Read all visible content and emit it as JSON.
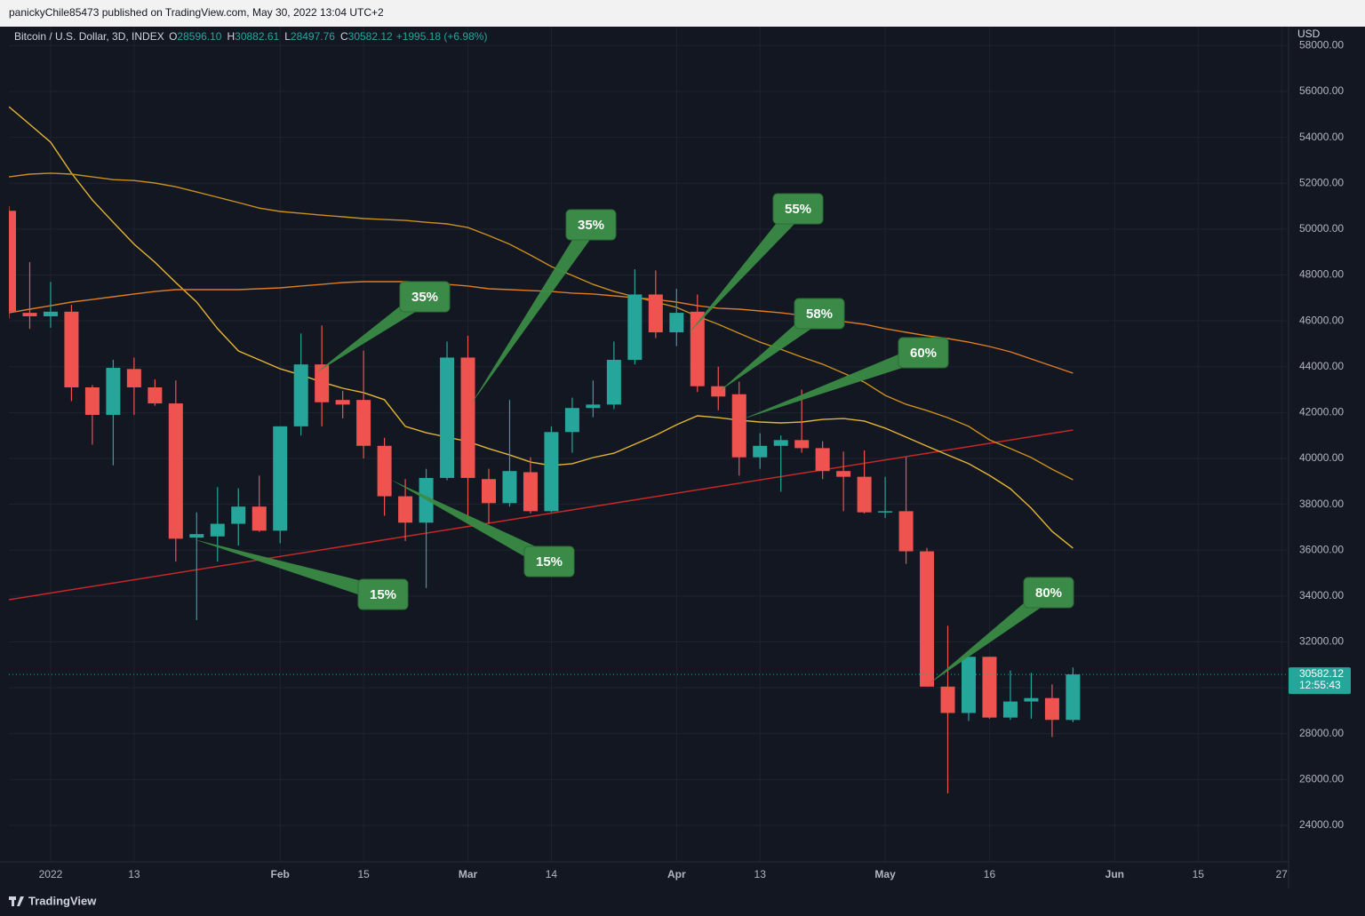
{
  "header": {
    "published": "panickyChile85473 published on TradingView.com, May 30, 2022 13:04 UTC+2",
    "symbol": "Bitcoin / U.S. Dollar, 3D, INDEX",
    "ohlc": [
      {
        "key": "O",
        "value": "28596.10"
      },
      {
        "key": "H",
        "value": "30882.61"
      },
      {
        "key": "L",
        "value": "28497.76"
      },
      {
        "key": "C",
        "value": "30582.12"
      }
    ],
    "change": "+1995.18 (+6.98%)"
  },
  "footer": "TradingView",
  "chart_data": {
    "type": "candlestick",
    "currency": "USD",
    "grid": true,
    "up_color": "#26a69a",
    "down_color": "#ef5350",
    "x": [
      "2021-12-26",
      "2021-12-29",
      "2022-01-01",
      "2022-01-04",
      "2022-01-07",
      "2022-01-10",
      "2022-01-13",
      "2022-01-16",
      "2022-01-19",
      "2022-01-22",
      "2022-01-25",
      "2022-01-28",
      "2022-01-31",
      "2022-02-03",
      "2022-02-06",
      "2022-02-09",
      "2022-02-12",
      "2022-02-15",
      "2022-02-18",
      "2022-02-21",
      "2022-02-24",
      "2022-02-27",
      "2022-03-02",
      "2022-03-05",
      "2022-03-08",
      "2022-03-11",
      "2022-03-14",
      "2022-03-17",
      "2022-03-20",
      "2022-03-23",
      "2022-03-26",
      "2022-03-29",
      "2022-04-01",
      "2022-04-04",
      "2022-04-07",
      "2022-04-10",
      "2022-04-13",
      "2022-04-16",
      "2022-04-19",
      "2022-04-22",
      "2022-04-25",
      "2022-04-28",
      "2022-05-01",
      "2022-05-04",
      "2022-05-07",
      "2022-05-10",
      "2022-05-13",
      "2022-05-16",
      "2022-05-19",
      "2022-05-22",
      "2022-05-25",
      "2022-05-28"
    ],
    "open": [
      50800,
      46350,
      46200,
      46400,
      43100,
      41900,
      43900,
      43100,
      42400,
      36550,
      36600,
      37150,
      37900,
      36850,
      41400,
      44100,
      42550,
      42550,
      40550,
      38350,
      37200,
      39150,
      44400,
      39100,
      38050,
      39400,
      37700,
      41150,
      42200,
      42350,
      44300,
      47150,
      45500,
      46400,
      43150,
      42800,
      40050,
      40550,
      40800,
      40450,
      39450,
      39200,
      37650,
      37700,
      35950,
      30050,
      28900,
      31350,
      28700,
      29400,
      29550,
      28596.1
    ],
    "high": [
      51000,
      48560,
      47700,
      46700,
      43200,
      44300,
      44400,
      43450,
      43400,
      37650,
      38750,
      38700,
      39250,
      41400,
      45450,
      45800,
      42950,
      44700,
      40900,
      39100,
      39550,
      45100,
      45350,
      39550,
      42550,
      40050,
      41400,
      42650,
      43400,
      45100,
      48250,
      48200,
      47400,
      47150,
      44000,
      43350,
      41100,
      41000,
      43000,
      40750,
      40300,
      40350,
      39200,
      40050,
      36100,
      32700,
      31350,
      31350,
      30750,
      30650,
      30150,
      30882.61
    ],
    "low": [
      46100,
      45650,
      45700,
      42500,
      40600,
      39700,
      41900,
      42300,
      35500,
      32950,
      35500,
      36200,
      36800,
      36300,
      41000,
      41400,
      41750,
      40000,
      37500,
      36400,
      34350,
      39050,
      37150,
      37150,
      37900,
      37600,
      37650,
      40250,
      41800,
      42150,
      44100,
      45250,
      44900,
      42900,
      42100,
      39250,
      39550,
      38550,
      40250,
      39100,
      37700,
      37600,
      37400,
      35400,
      30050,
      25400,
      28550,
      28650,
      28600,
      28650,
      27850,
      28497.76
    ],
    "close": [
      46400,
      46200,
      46400,
      43100,
      41900,
      43950,
      43100,
      42400,
      36500,
      36700,
      37150,
      37900,
      36850,
      41400,
      44100,
      42450,
      42350,
      40550,
      38350,
      37200,
      39150,
      44400,
      39150,
      38050,
      39450,
      37700,
      41150,
      42200,
      42350,
      44300,
      47150,
      45500,
      46350,
      43150,
      42700,
      40050,
      40550,
      40800,
      40450,
      39450,
      39200,
      37650,
      37700,
      35950,
      30050,
      28900,
      31350,
      28700,
      29400,
      29550,
      28600,
      30582.12
    ],
    "series": [
      {
        "color": "#e3b534",
        "values": [
          55340,
          54570,
          53790,
          52440,
          51270,
          50300,
          49340,
          48560,
          47670,
          46820,
          45660,
          44690,
          44300,
          43910,
          43640,
          43330,
          43060,
          42870,
          42560,
          41400,
          41120,
          40930,
          40740,
          40430,
          40150,
          39840,
          39690,
          39770,
          40040,
          40230,
          40620,
          41010,
          41470,
          41860,
          41780,
          41670,
          41590,
          41550,
          41590,
          41700,
          41740,
          41630,
          41320,
          40930,
          40540,
          40150,
          39770,
          39260,
          38680,
          37830,
          36820,
          36090
        ]
      },
      {
        "color": "#c98f1e",
        "values": [
          52280,
          52400,
          52440,
          52400,
          52280,
          52160,
          52120,
          52010,
          51850,
          51620,
          51390,
          51160,
          50920,
          50770,
          50690,
          50610,
          50540,
          50460,
          50420,
          50380,
          50300,
          50230,
          50070,
          49720,
          49340,
          48870,
          48370,
          47980,
          47590,
          47280,
          47050,
          46820,
          46590,
          46200,
          45850,
          45460,
          45070,
          44760,
          44420,
          44110,
          43720,
          43330,
          42750,
          42360,
          42090,
          41780,
          41400,
          40810,
          40430,
          40040,
          39530,
          39070
        ]
      },
      {
        "color": "#e07b22",
        "values": [
          46350,
          46510,
          46660,
          46820,
          46930,
          47050,
          47170,
          47280,
          47360,
          47360,
          47360,
          47360,
          47400,
          47440,
          47520,
          47590,
          47670,
          47710,
          47710,
          47710,
          47670,
          47590,
          47520,
          47400,
          47360,
          47320,
          47280,
          47210,
          47170,
          47090,
          47010,
          46930,
          46820,
          46660,
          46550,
          46510,
          46430,
          46350,
          46240,
          46120,
          45970,
          45850,
          45660,
          45500,
          45350,
          45230,
          45070,
          44880,
          44650,
          44340,
          44030,
          43720
        ]
      }
    ],
    "trendline": {
      "color": "#c62828",
      "x": [
        "2021-12-26",
        "2022-05-28"
      ],
      "values": [
        33840,
        41240
      ]
    },
    "annotations": [
      "35%",
      "35%",
      "55%",
      "58%",
      "60%",
      "15%",
      "15%",
      "80%"
    ],
    "price_label": {
      "price": "30582.12",
      "countdown": "12:55:43"
    },
    "xlim": [
      "2021-12-26",
      "2022-06-28"
    ],
    "xticks": [
      {
        "value": "2022-01-01",
        "label": "2022"
      },
      {
        "value": "2022-01-13",
        "label": "13"
      },
      {
        "value": "2022-02-03",
        "label": "Feb"
      },
      {
        "value": "2022-02-15",
        "label": "15"
      },
      {
        "value": "2022-03-02",
        "label": "Mar"
      },
      {
        "value": "2022-03-14",
        "label": "14"
      },
      {
        "value": "2022-04-01",
        "label": "Apr"
      },
      {
        "value": "2022-04-13",
        "label": "13"
      },
      {
        "value": "2022-05-01",
        "label": "May"
      },
      {
        "value": "2022-05-16",
        "label": "16"
      },
      {
        "value": "2022-06-03",
        "label": "Jun"
      },
      {
        "value": "2022-06-15",
        "label": "15"
      },
      {
        "value": "2022-06-27",
        "label": "27"
      }
    ],
    "ylim": [
      22410,
      58830
    ],
    "yticks": [
      {
        "value": 24000,
        "label": "24000.00"
      },
      {
        "value": 26000,
        "label": "26000.00"
      },
      {
        "value": 28000,
        "label": "28000.00"
      },
      {
        "value": 30000,
        "label": "30000.00"
      },
      {
        "value": 32000,
        "label": "32000.00"
      },
      {
        "value": 34000,
        "label": "34000.00"
      },
      {
        "value": 36000,
        "label": "36000.00"
      },
      {
        "value": 38000,
        "label": "38000.00"
      },
      {
        "value": 40000,
        "label": "40000.00"
      },
      {
        "value": 42000,
        "label": "42000.00"
      },
      {
        "value": 44000,
        "label": "44000.00"
      },
      {
        "value": 46000,
        "label": "46000.00"
      },
      {
        "value": 48000,
        "label": "48000.00"
      },
      {
        "value": 50000,
        "label": "50000.00"
      },
      {
        "value": 52000,
        "label": "52000.00"
      },
      {
        "value": 54000,
        "label": "54000.00"
      },
      {
        "value": 56000,
        "label": "56000.00"
      },
      {
        "value": 58000,
        "label": "58000.00"
      }
    ]
  }
}
